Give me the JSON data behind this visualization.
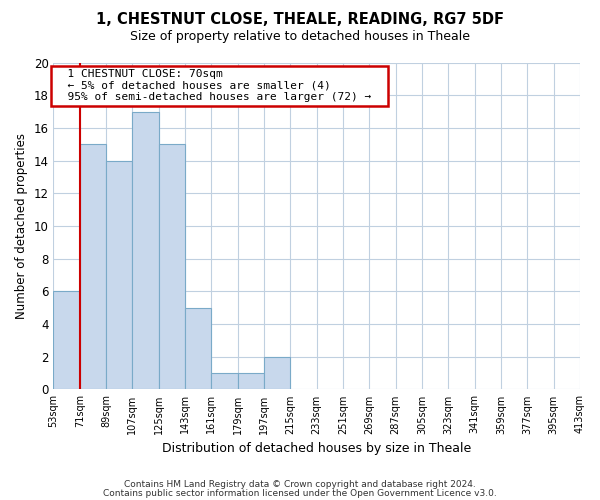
{
  "title": "1, CHESTNUT CLOSE, THEALE, READING, RG7 5DF",
  "subtitle": "Size of property relative to detached houses in Theale",
  "xlabel": "Distribution of detached houses by size in Theale",
  "ylabel": "Number of detached properties",
  "bar_color": "#c8d8ec",
  "bar_edge_color": "#7aaac8",
  "bin_edges": [
    53,
    71,
    89,
    107,
    125,
    143,
    161,
    179,
    197,
    215,
    233,
    251,
    269,
    287,
    305,
    323,
    341,
    359,
    377,
    395,
    413
  ],
  "bin_labels": [
    "53sqm",
    "71sqm",
    "89sqm",
    "107sqm",
    "125sqm",
    "143sqm",
    "161sqm",
    "179sqm",
    "197sqm",
    "215sqm",
    "233sqm",
    "251sqm",
    "269sqm",
    "287sqm",
    "305sqm",
    "323sqm",
    "341sqm",
    "359sqm",
    "377sqm",
    "395sqm",
    "413sqm"
  ],
  "counts": [
    6,
    15,
    14,
    17,
    15,
    5,
    1,
    1,
    2,
    0,
    0,
    0,
    0,
    0,
    0,
    0,
    0,
    0,
    0,
    0
  ],
  "ylim": [
    0,
    20
  ],
  "yticks": [
    0,
    2,
    4,
    6,
    8,
    10,
    12,
    14,
    16,
    18,
    20
  ],
  "property_line_x": 71,
  "annotation_title": "1 CHESTNUT CLOSE: 70sqm",
  "annotation_line1": "← 5% of detached houses are smaller (4)",
  "annotation_line2": "95% of semi-detached houses are larger (72) →",
  "annotation_box_color": "#ffffff",
  "annotation_box_edge": "#cc0000",
  "property_line_color": "#cc0000",
  "footer1": "Contains HM Land Registry data © Crown copyright and database right 2024.",
  "footer2": "Contains public sector information licensed under the Open Government Licence v3.0.",
  "background_color": "#ffffff",
  "grid_color": "#c0d0e0"
}
